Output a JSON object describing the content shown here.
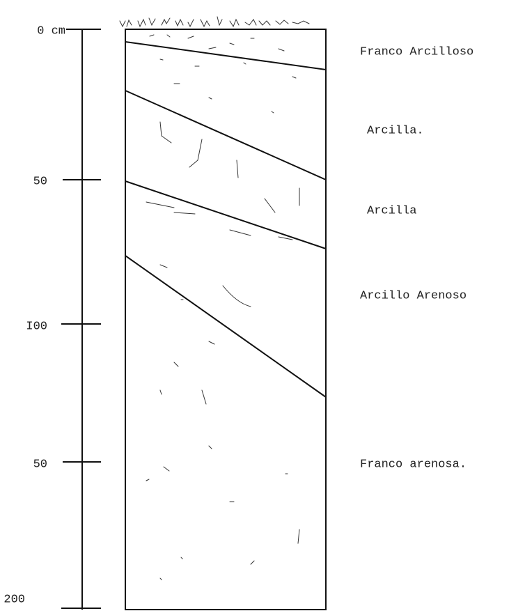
{
  "scale": {
    "labels": [
      "0 cm",
      "50",
      "I00",
      "50",
      "200"
    ]
  },
  "layers": [
    {
      "label": "Franco Arcilloso"
    },
    {
      "label": "Arcilla."
    },
    {
      "label": "Arcilla"
    },
    {
      "label": "Arcillo Arenoso"
    },
    {
      "label": "Franco arenosa."
    }
  ]
}
